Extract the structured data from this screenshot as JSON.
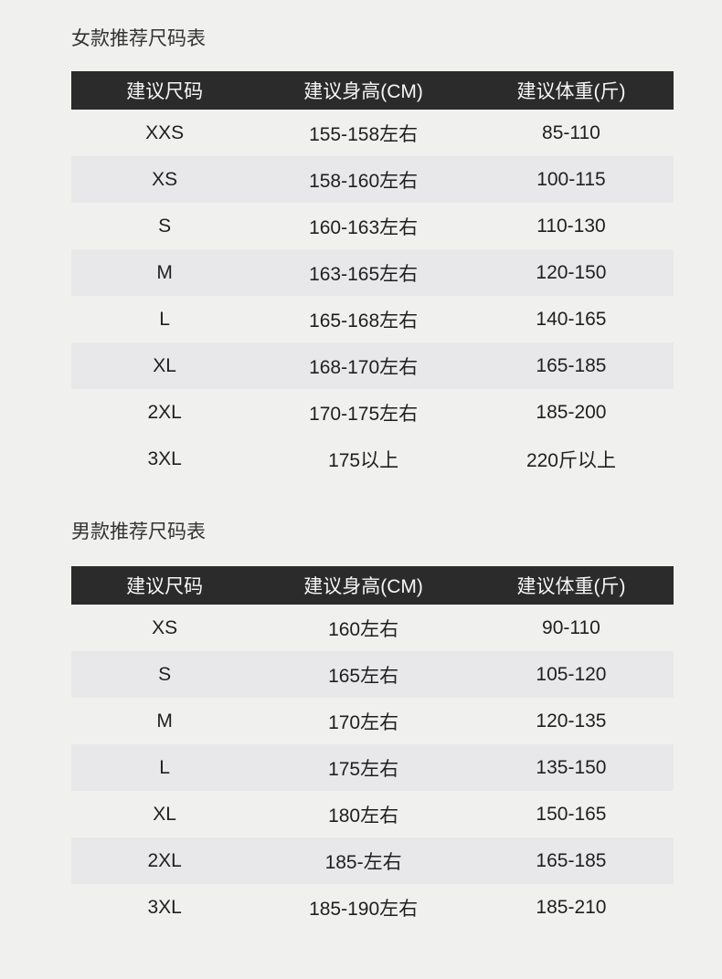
{
  "colors": {
    "page_bg": "#f0f1ee",
    "header_bg": "#2b2b2b",
    "header_text": "#f7f7f7",
    "row_alt_bg": "#e8e8ea",
    "body_text": "#1f1f1f"
  },
  "tables": [
    {
      "title": "女款推荐尺码表",
      "columns": [
        "建议尺码",
        "建议身高(CM)",
        "建议体重(斤)"
      ],
      "rows": [
        [
          "XXS",
          "155-158左右",
          "85-110"
        ],
        [
          "XS",
          "158-160左右",
          "100-115"
        ],
        [
          "S",
          "160-163左右",
          "110-130"
        ],
        [
          "M",
          "163-165左右",
          "120-150"
        ],
        [
          "L",
          "165-168左右",
          "140-165"
        ],
        [
          "XL",
          "168-170左右",
          "165-185"
        ],
        [
          "2XL",
          "170-175左右",
          "185-200"
        ],
        [
          "3XL",
          "175以上",
          "220斤以上"
        ]
      ],
      "shaded_rows": [
        1,
        3,
        5
      ]
    },
    {
      "title": "男款推荐尺码表",
      "columns": [
        "建议尺码",
        "建议身高(CM)",
        "建议体重(斤)"
      ],
      "rows": [
        [
          "XS",
          "160左右",
          "90-110"
        ],
        [
          "S",
          "165左右",
          "105-120"
        ],
        [
          "M",
          "170左右",
          "120-135"
        ],
        [
          "L",
          "175左右",
          "135-150"
        ],
        [
          "XL",
          "180左右",
          "150-165"
        ],
        [
          "2XL",
          "185-左右",
          "165-185"
        ],
        [
          "3XL",
          "185-190左右",
          "185-210"
        ]
      ],
      "shaded_rows": [
        1,
        3,
        5
      ]
    }
  ]
}
